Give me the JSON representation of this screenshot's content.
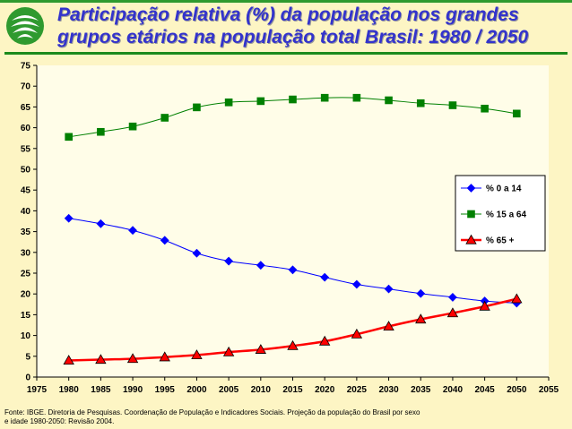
{
  "title": "Participação relativa (%) da população nos grandes grupos etários na população total Brasil: 1980 / 2050",
  "logo": {
    "icon": "ibge-logo-icon"
  },
  "colors": {
    "background": "#fdf5c4",
    "title": "#3333cc",
    "accent_line": "#1b8a1b",
    "series_0_14": "#0000ff",
    "series_15_64": "#008000",
    "series_65_plus": "#ff0000"
  },
  "chart_data": {
    "type": "line",
    "title": "",
    "xlabel": "",
    "ylabel": "",
    "x": [
      1980,
      1985,
      1990,
      1995,
      2000,
      2005,
      2010,
      2015,
      2020,
      2025,
      2030,
      2035,
      2040,
      2045,
      2050
    ],
    "xlim": [
      1975,
      2055
    ],
    "xticks": [
      1975,
      1980,
      1985,
      1990,
      1995,
      2000,
      2005,
      2010,
      2015,
      2020,
      2025,
      2030,
      2035,
      2040,
      2045,
      2050,
      2055
    ],
    "ylim": [
      0,
      75
    ],
    "yticks": [
      0,
      5,
      10,
      15,
      20,
      25,
      30,
      35,
      40,
      45,
      50,
      55,
      60,
      65,
      70,
      75
    ],
    "grid": false,
    "legend_position": "right",
    "series": [
      {
        "name": "% 0 a 14",
        "marker": "diamond",
        "color": "#0000ff",
        "values": [
          38.2,
          36.9,
          35.3,
          32.9,
          29.8,
          27.9,
          26.9,
          25.8,
          24.0,
          22.3,
          21.2,
          20.1,
          19.2,
          18.3,
          17.8
        ]
      },
      {
        "name": "% 15 a 64",
        "marker": "square",
        "color": "#008000",
        "values": [
          57.8,
          59.0,
          60.3,
          62.4,
          64.9,
          66.1,
          66.4,
          66.8,
          67.2,
          67.2,
          66.6,
          65.9,
          65.4,
          64.6,
          63.4
        ]
      },
      {
        "name": "% 65 +",
        "marker": "triangle",
        "color": "#ff0000",
        "values": [
          4.0,
          4.2,
          4.4,
          4.8,
          5.3,
          6.0,
          6.6,
          7.5,
          8.6,
          10.3,
          12.2,
          13.9,
          15.4,
          17.0,
          18.8
        ]
      }
    ]
  },
  "source": "Fonte: IBGE. Diretoria de Pesquisas. Coordenação de População e Indicadores Sociais. Projeção da população do Brasil por sexo e idade 1980-2050: Revisão 2004."
}
